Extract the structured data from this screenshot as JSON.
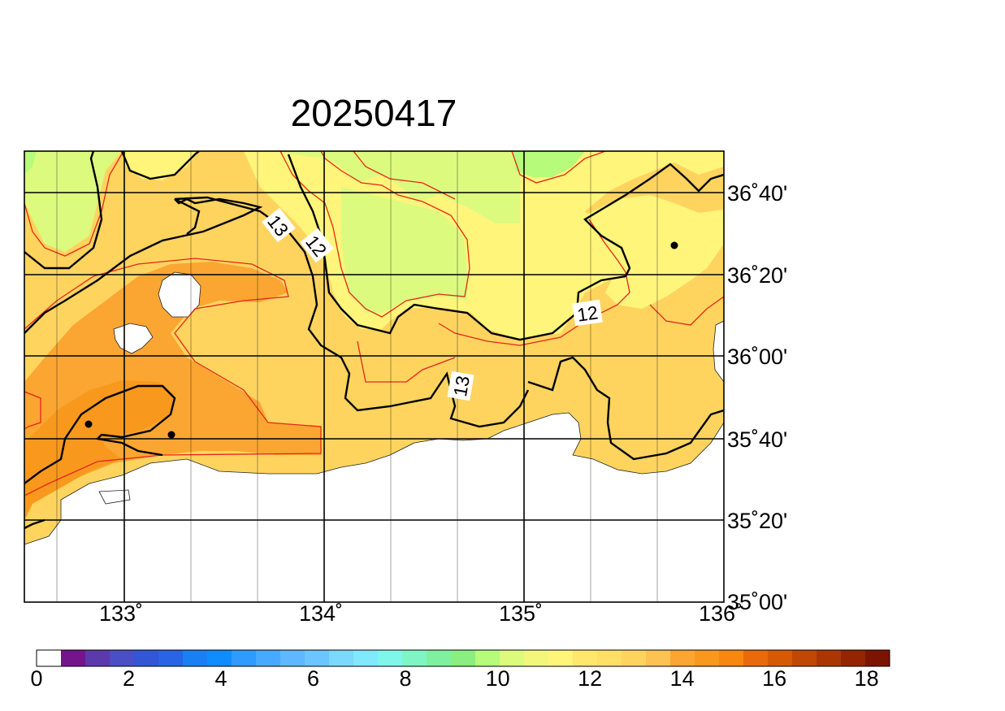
{
  "title": "20250417",
  "map": {
    "lat_labels": [
      "36˚40'",
      "36˚20'",
      "36˚00'",
      "35˚40'",
      "35˚20'",
      "35˚00'"
    ],
    "lon_labels": [
      "133˚",
      "134˚",
      "135˚",
      "136˚"
    ],
    "lon_range": [
      132.45,
      135.95
    ],
    "lat_range": [
      35.0,
      36.85
    ],
    "contour_labels": [
      "13",
      "12",
      "13",
      "12"
    ],
    "land_color": "#ffffff",
    "contour_color_major": "#000000",
    "contour_color_minor": "#e6261a",
    "grid_color": "#000000",
    "field_colors": {
      "c11_0": "#b6fb7a",
      "c11_5": "#dcfa7e",
      "c12_0": "#fff57a",
      "c12_5": "#ffdf66",
      "c13_0": "#fed45f",
      "c13_5": "#fba632",
      "c14_0": "#f8991e"
    }
  },
  "colorbar": {
    "ticks": [
      "0",
      "2",
      "4",
      "6",
      "8",
      "10",
      "12",
      "14",
      "16",
      "18"
    ],
    "colors": [
      "#ffffff",
      "#74158c",
      "#5c3aab",
      "#4a4fc5",
      "#3256d6",
      "#2864e6",
      "#1a7ff2",
      "#0f8cff",
      "#2f9bff",
      "#47a9ff",
      "#5fb8ff",
      "#6cc5ff",
      "#7cd8ff",
      "#80e8ff",
      "#7ff6ea",
      "#7ff5c4",
      "#7ff0a0",
      "#8aee80",
      "#b6fb7a",
      "#dcfa7e",
      "#f2f77c",
      "#fff57a",
      "#ffe66c",
      "#ffdf66",
      "#fed45f",
      "#fdc352",
      "#fba632",
      "#f8991e",
      "#f7870f",
      "#e86a0a",
      "#d65a06",
      "#c14704",
      "#aa3603",
      "#932503",
      "#7c1402"
    ]
  }
}
